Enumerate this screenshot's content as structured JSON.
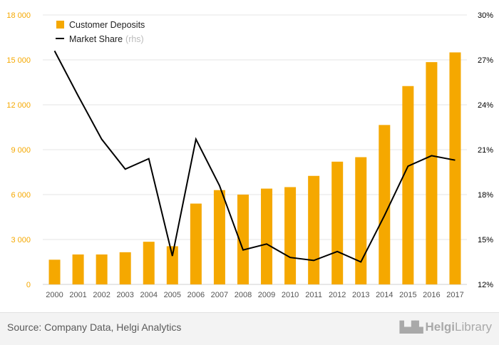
{
  "chart_data": {
    "type": "bar",
    "categories": [
      "2000",
      "2001",
      "2002",
      "2003",
      "2004",
      "2005",
      "2006",
      "2007",
      "2008",
      "2009",
      "2010",
      "2011",
      "2012",
      "2013",
      "2014",
      "2015",
      "2016",
      "2017"
    ],
    "series": [
      {
        "name": "Customer Deposits",
        "type": "bar",
        "axis": "left",
        "color": "#F5A800",
        "values": [
          1650,
          2000,
          2000,
          2150,
          2850,
          2550,
          5400,
          6300,
          6000,
          6400,
          6500,
          7250,
          8200,
          8500,
          10650,
          13250,
          14850,
          15500
        ]
      },
      {
        "name": "Market Share",
        "name_suffix": "(rhs)",
        "type": "line",
        "axis": "right",
        "color": "#000000",
        "values": [
          27.6,
          24.6,
          21.7,
          19.7,
          20.4,
          13.9,
          21.7,
          18.6,
          14.3,
          14.7,
          13.8,
          13.6,
          14.2,
          13.5,
          16.6,
          19.9,
          20.6,
          20.3
        ]
      }
    ],
    "y_left": {
      "ticks": [
        "0",
        "3 000",
        "6 000",
        "9 000",
        "12 000",
        "15 000",
        "18 000"
      ],
      "range": [
        0,
        18000
      ],
      "color": "#F5A800"
    },
    "y_right": {
      "ticks": [
        "12%",
        "15%",
        "18%",
        "21%",
        "24%",
        "27%",
        "30%"
      ],
      "range": [
        12,
        30
      ]
    },
    "grid": true,
    "legend_position": "top-left"
  },
  "footer": {
    "source": "Source: Company Data, Helgi Analytics",
    "logo_mark": "▙▟▙",
    "logo_name": "Helgi",
    "logo_suffix": "Library"
  }
}
